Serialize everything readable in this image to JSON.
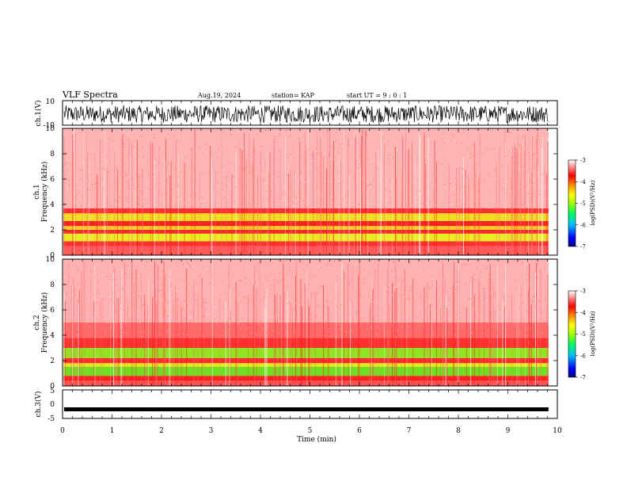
{
  "header": {
    "title": "VLF Spectra",
    "date": "Aug.19, 2024",
    "station": "station= KAP",
    "start": "start  UT  =   9 : 0  : 1"
  },
  "chart_data": [
    {
      "type": "line",
      "name": "ch1-waveform",
      "ylabel": "ch.1(V)",
      "ylim": [
        -10,
        10
      ],
      "yticks": [
        "10",
        "-10"
      ],
      "xlim": [
        0,
        10
      ],
      "data_x_end": 9.82,
      "line_color": "#000000"
    },
    {
      "type": "heatmap",
      "name": "ch1-spectrogram",
      "ylabel_line1": "ch.1",
      "ylabel_line2": "Frequency  (kHz)",
      "ylim": [
        0,
        10
      ],
      "yticks": [
        "0",
        "2",
        "4",
        "6",
        "8",
        "10"
      ],
      "xlim": [
        0,
        10
      ],
      "data_x_end": 9.82,
      "bands": [
        {
          "from": 0.0,
          "to": 0.7,
          "color": "#ff5a5a"
        },
        {
          "from": 0.7,
          "to": 1.1,
          "color": "#ff3030"
        },
        {
          "from": 1.1,
          "to": 1.7,
          "color": "#e8ee20"
        },
        {
          "from": 1.7,
          "to": 2.0,
          "color": "#ff2a2a"
        },
        {
          "from": 2.0,
          "to": 2.3,
          "color": "#f0d020"
        },
        {
          "from": 2.3,
          "to": 2.7,
          "color": "#ff2020"
        },
        {
          "from": 2.7,
          "to": 3.3,
          "color": "#f2e020"
        },
        {
          "from": 3.3,
          "to": 3.7,
          "color": "#ff3030"
        },
        {
          "from": 3.7,
          "to": 10.0,
          "color": "#ffb4b4"
        }
      ],
      "colorbar": {
        "label": "log(PSD)(V²/Hz)",
        "ticks": [
          "-3",
          "-4",
          "-5",
          "-6",
          "-7"
        ],
        "range": [
          -7,
          -3
        ]
      }
    },
    {
      "type": "heatmap",
      "name": "ch2-spectrogram",
      "ylabel_line1": "ch.2",
      "ylabel_line2": "Frequency  (kHz)",
      "ylim": [
        0,
        10
      ],
      "yticks": [
        "0",
        "2",
        "4",
        "6",
        "8",
        "10"
      ],
      "xlim": [
        0,
        10
      ],
      "data_x_end": 9.82,
      "bands": [
        {
          "from": 0.0,
          "to": 0.4,
          "color": "#ff5050"
        },
        {
          "from": 0.4,
          "to": 0.8,
          "color": "#ff2020"
        },
        {
          "from": 0.8,
          "to": 1.5,
          "color": "#6ee020"
        },
        {
          "from": 1.5,
          "to": 1.8,
          "color": "#e0e820"
        },
        {
          "from": 1.8,
          "to": 2.2,
          "color": "#ff2a2a"
        },
        {
          "from": 2.2,
          "to": 3.0,
          "color": "#90e420"
        },
        {
          "from": 3.0,
          "to": 3.8,
          "color": "#ff3030"
        },
        {
          "from": 3.8,
          "to": 5.0,
          "color": "#ff6a6a"
        },
        {
          "from": 5.0,
          "to": 10.0,
          "color": "#ffb0b0"
        }
      ],
      "colorbar": {
        "label": "log(PSD)(V²/Hz)",
        "ticks": [
          "-3",
          "-4",
          "-5",
          "-6",
          "-7"
        ],
        "range": [
          -7,
          -3
        ]
      }
    },
    {
      "type": "line",
      "name": "ch3-waveform",
      "ylabel": "ch.3(V)",
      "ylim": [
        -5,
        5
      ],
      "yticks": [
        "5",
        "0",
        "-5"
      ],
      "xlim": [
        0,
        10
      ],
      "data_x_end": 9.82,
      "level": -1.8,
      "line_color": "#000000"
    }
  ],
  "x_axis": {
    "label": "Time  (min)",
    "ticks": [
      "0",
      "1",
      "2",
      "3",
      "4",
      "5",
      "6",
      "7",
      "8",
      "9",
      "10"
    ]
  },
  "colormap": [
    "#000080",
    "#0000ff",
    "#00c0ff",
    "#00ff60",
    "#a0ff00",
    "#ffff00",
    "#ff8000",
    "#ff0000",
    "#ffffff"
  ]
}
